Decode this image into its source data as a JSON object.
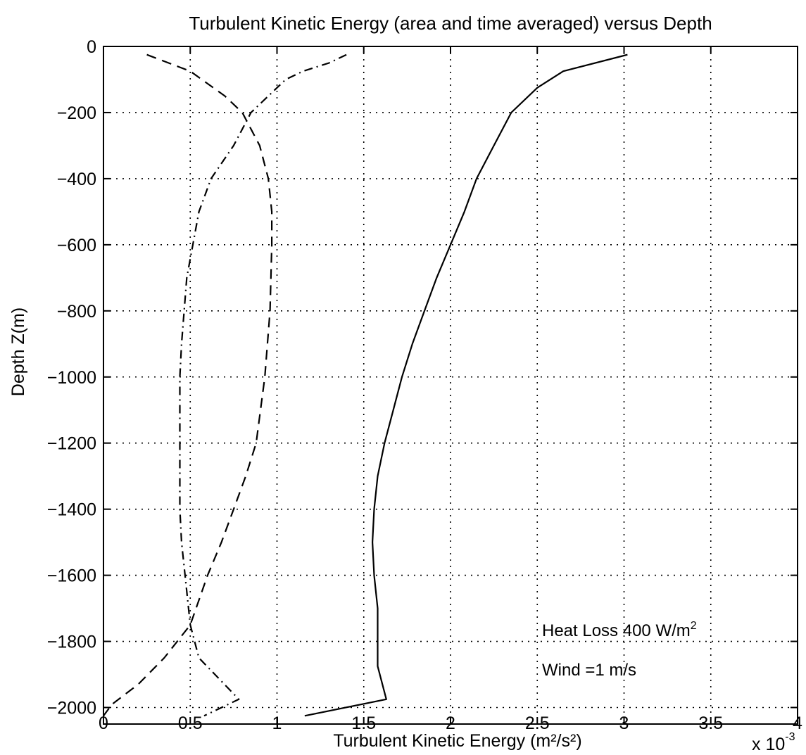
{
  "chart_data": {
    "type": "line",
    "title": "Turbulent Kinetic Energy (area and time averaged) versus Depth",
    "xlabel": "Turbulent Kinetic Energy (m²/s²)",
    "ylabel": "Depth Z(m)",
    "x_scale_note": "x 10",
    "x_scale_exponent": "-3",
    "xlim": [
      0,
      4
    ],
    "ylim": [
      -2050,
      0
    ],
    "xticks": [
      0,
      0.5,
      1,
      1.5,
      2,
      2.5,
      3,
      3.5,
      4
    ],
    "xtick_labels": [
      "0",
      "0.5",
      "1",
      "1.5",
      "2",
      "2.5",
      "3",
      "3.5",
      "4"
    ],
    "yticks": [
      0,
      -200,
      -400,
      -600,
      -800,
      -1000,
      -1200,
      -1400,
      -1600,
      -1800,
      -2000
    ],
    "ytick_labels": [
      "0",
      "−200",
      "−400",
      "−600",
      "−800",
      "−1000",
      "−1200",
      "−1400",
      "−1600",
      "−1800",
      "−2000"
    ],
    "grid": true,
    "annotations": [
      {
        "text": "Heat Loss 400 W/m",
        "superscript": "2"
      },
      {
        "text": "Wind =1 m/s"
      }
    ],
    "series": [
      {
        "style": "solid",
        "x": [
          3.02,
          2.65,
          2.5,
          2.35,
          2.25,
          2.15,
          2.08,
          2.0,
          1.92,
          1.85,
          1.78,
          1.72,
          1.67,
          1.62,
          1.58,
          1.56,
          1.55,
          1.56,
          1.58,
          1.58,
          1.63,
          1.16
        ],
        "y": [
          -25,
          -75,
          -125,
          -200,
          -300,
          -400,
          -500,
          -600,
          -700,
          -800,
          -900,
          -1000,
          -1100,
          -1200,
          -1300,
          -1400,
          -1500,
          -1600,
          -1700,
          -1875,
          -1975,
          -2025
        ]
      },
      {
        "style": "dashed",
        "x": [
          0.25,
          0.5,
          0.7,
          0.8,
          0.9,
          0.95,
          0.97,
          0.97,
          0.96,
          0.93,
          0.88,
          0.82,
          0.75,
          0.68,
          0.6,
          0.5,
          0.35,
          0.2,
          0.05,
          0.0
        ],
        "y": [
          -25,
          -75,
          -150,
          -200,
          -300,
          -400,
          -500,
          -600,
          -800,
          -1000,
          -1200,
          -1300,
          -1400,
          -1500,
          -1600,
          -1750,
          -1850,
          -1930,
          -1990,
          -2025
        ]
      },
      {
        "style": "dashdot",
        "x": [
          1.4,
          1.3,
          1.15,
          1.05,
          0.85,
          0.75,
          0.62,
          0.55,
          0.48,
          0.45,
          0.44,
          0.44,
          0.44,
          0.45,
          0.47,
          0.5,
          0.55,
          0.78,
          0.58
        ],
        "y": [
          -25,
          -50,
          -75,
          -100,
          -200,
          -300,
          -400,
          -500,
          -700,
          -900,
          -1000,
          -1200,
          -1400,
          -1500,
          -1600,
          -1750,
          -1850,
          -1975,
          -2025
        ]
      }
    ]
  }
}
